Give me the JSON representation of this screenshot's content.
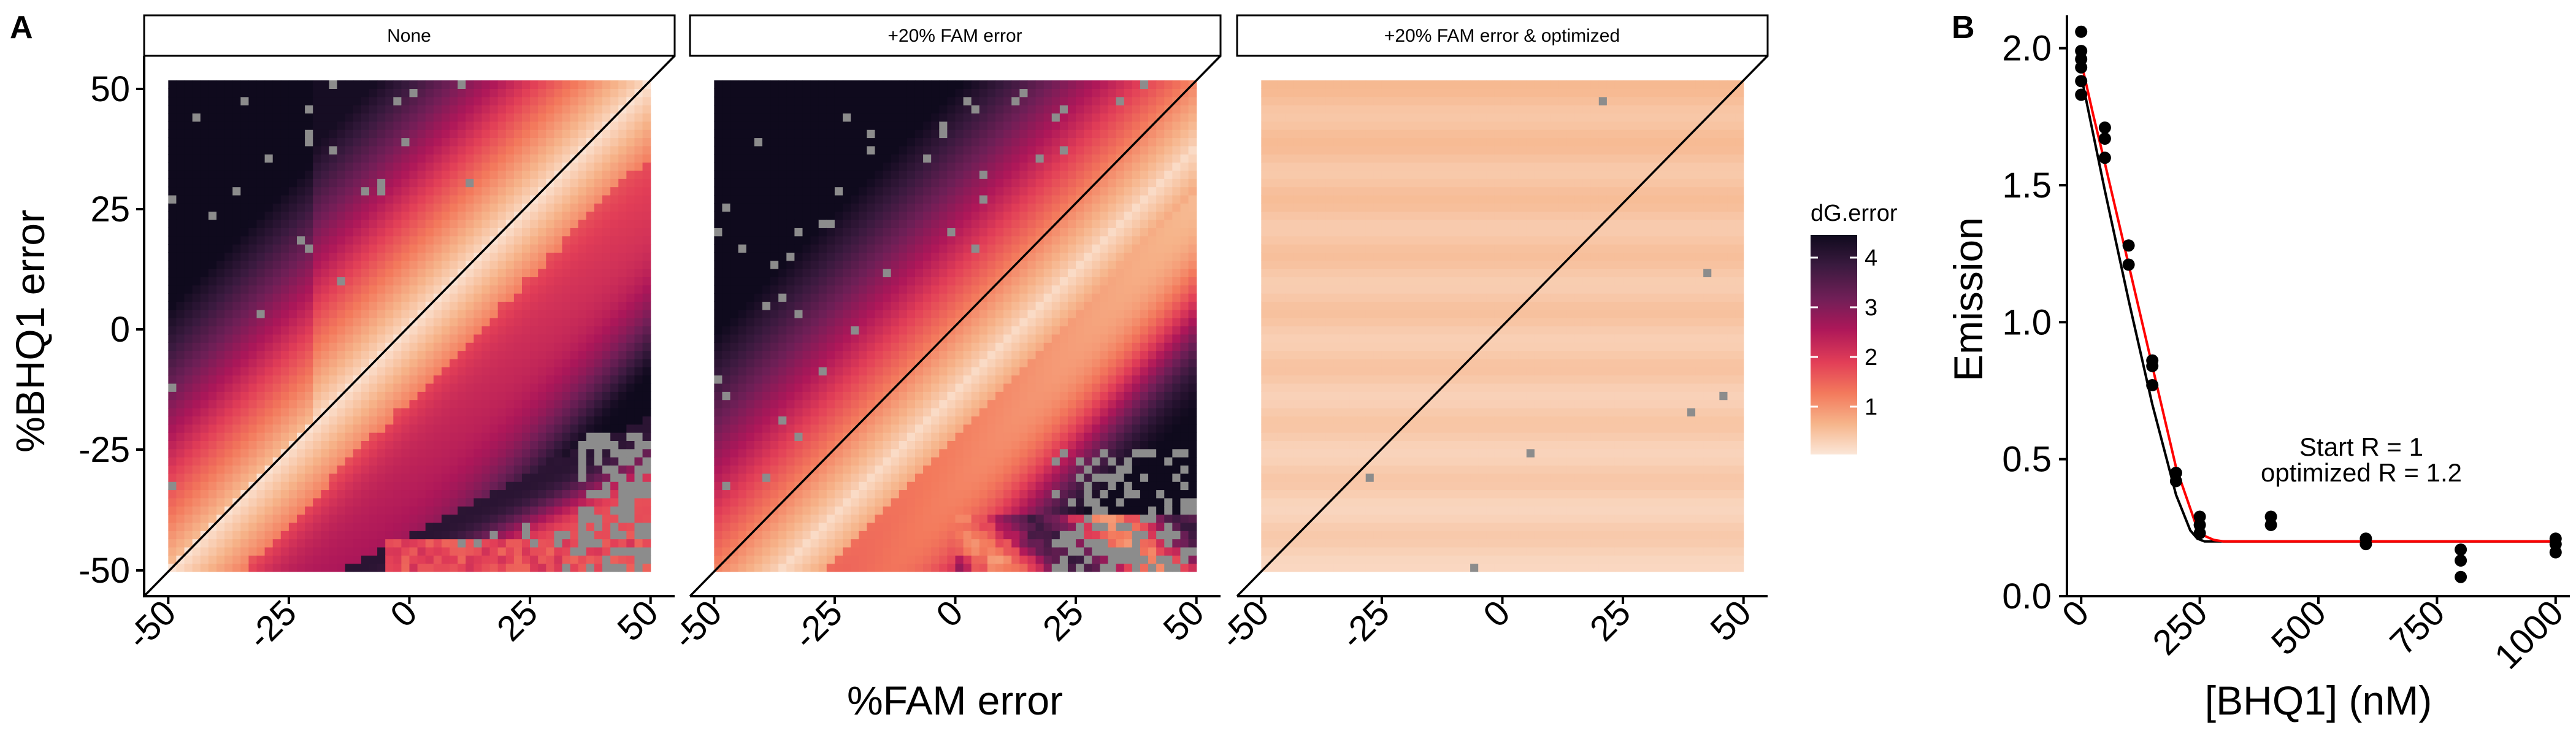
{
  "panel_a": {
    "letter": "A",
    "facets": [
      "None",
      "+20% FAM error",
      "+20% FAM error & optimized"
    ],
    "x_axis_title": "%FAM error",
    "y_axis_title": "%BHQ1 error",
    "x_ticks": [
      "-50",
      "-25",
      "0",
      "25",
      "50"
    ],
    "y_ticks": [
      "50",
      "25",
      "0",
      "-25",
      "-50"
    ],
    "legend_title": "dG.error",
    "legend_ticks": [
      "4",
      "3",
      "2",
      "1"
    ]
  },
  "panel_b": {
    "letter": "B",
    "x_axis_title": "[BHQ1] (nM)",
    "y_axis_title": "Emission",
    "x_ticks": [
      "0",
      "250",
      "500",
      "750",
      "1000"
    ],
    "y_ticks": [
      "2.0",
      "1.5",
      "1.0",
      "0.5",
      "0.0"
    ],
    "annotation_start": "Start R = 1",
    "annotation_optimized": "optimized R = 1.2"
  },
  "colors": {
    "fit_start": "#000000",
    "fit_optimized": "#ff0000",
    "points": "#000000",
    "missing_tile": "#8c8c8c",
    "palette": [
      "#fbe6d8",
      "#f6b48a",
      "#f3795c",
      "#e23e57",
      "#ad1759",
      "#701f57",
      "#3a1a3f",
      "#0f0a1d"
    ]
  },
  "chart_data": [
    {
      "type": "heatmap",
      "facets": [
        "None",
        "+20% FAM error",
        "+20% FAM error & optimized"
      ],
      "x": {
        "label": "%FAM error",
        "range": [
          -50,
          50
        ],
        "ticks": [
          -50,
          -25,
          0,
          25,
          50
        ]
      },
      "y": {
        "label": "%BHQ1 error",
        "range": [
          -50,
          50
        ],
        "ticks": [
          -50,
          -25,
          0,
          25,
          50
        ]
      },
      "fill": {
        "label": "dG.error",
        "range": [
          0.2,
          4.4
        ],
        "ticks": [
          1,
          2,
          3,
          4
        ]
      },
      "reference_line": "y = x",
      "missing_values_color": "grey",
      "optimized_facet_approx_dG_error": 0.6
    },
    {
      "type": "scatter",
      "x": {
        "label": "[BHQ1] (nM)",
        "range": [
          -30,
          1030
        ],
        "ticks": [
          0,
          250,
          500,
          750,
          1000
        ]
      },
      "y": {
        "label": "Emission",
        "range": [
          0,
          2.12
        ],
        "ticks": [
          0.0,
          0.5,
          1.0,
          1.5,
          2.0
        ]
      },
      "points": [
        [
          0,
          2.06
        ],
        [
          0,
          1.99
        ],
        [
          0,
          1.96
        ],
        [
          0,
          1.93
        ],
        [
          0,
          1.88
        ],
        [
          0,
          1.83
        ],
        [
          50,
          1.71
        ],
        [
          50,
          1.67
        ],
        [
          50,
          1.6
        ],
        [
          100,
          1.28
        ],
        [
          100,
          1.21
        ],
        [
          150,
          0.86
        ],
        [
          150,
          0.84
        ],
        [
          150,
          0.77
        ],
        [
          200,
          0.45
        ],
        [
          200,
          0.42
        ],
        [
          250,
          0.29
        ],
        [
          250,
          0.26
        ],
        [
          250,
          0.23
        ],
        [
          400,
          0.29
        ],
        [
          400,
          0.26
        ],
        [
          600,
          0.21
        ],
        [
          600,
          0.19
        ],
        [
          800,
          0.17
        ],
        [
          800,
          0.13
        ],
        [
          800,
          0.07
        ],
        [
          1000,
          0.21
        ],
        [
          1000,
          0.19
        ],
        [
          1000,
          0.16
        ]
      ],
      "series": [
        {
          "name": "Start R = 1",
          "color": "#000000",
          "x": [
            0,
            25,
            50,
            100,
            150,
            200,
            230,
            245,
            260,
            300,
            400,
            600,
            800,
            1000
          ],
          "y": [
            1.9,
            1.69,
            1.48,
            1.08,
            0.7,
            0.37,
            0.24,
            0.21,
            0.2,
            0.2,
            0.2,
            0.2,
            0.2,
            0.2
          ]
        },
        {
          "name": "optimized R = 1.2",
          "color": "#ff0000",
          "x": [
            0,
            25,
            50,
            100,
            150,
            200,
            240,
            260,
            280,
            300,
            400,
            600,
            800,
            1000
          ],
          "y": [
            1.95,
            1.76,
            1.58,
            1.21,
            0.84,
            0.47,
            0.27,
            0.22,
            0.205,
            0.2,
            0.2,
            0.2,
            0.2,
            0.2
          ]
        }
      ]
    }
  ]
}
